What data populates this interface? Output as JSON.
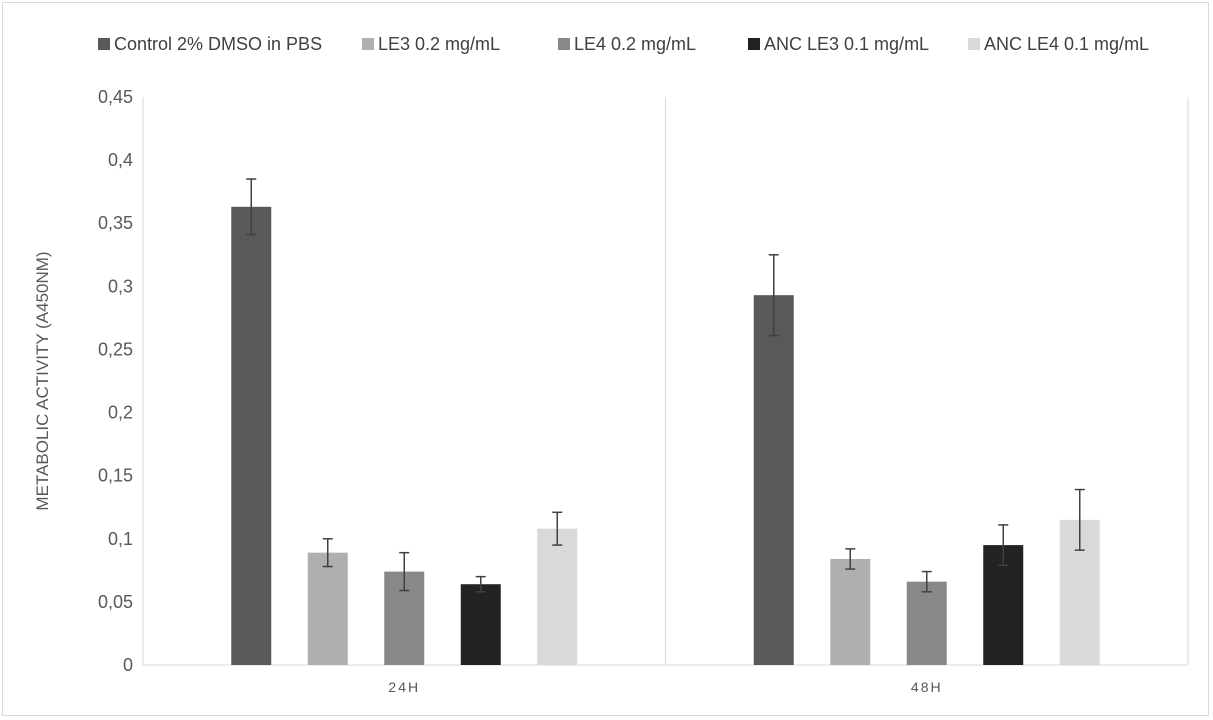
{
  "chart_data": {
    "type": "bar",
    "title": "",
    "xlabel": "",
    "ylabel": "METABOLIC ACTIVITY (A450NM)",
    "categories": [
      "24H",
      "48H"
    ],
    "ylim": [
      0,
      0.45
    ],
    "y_ticks": [
      0,
      0.05,
      0.1,
      0.15,
      0.2,
      0.25,
      0.3,
      0.35,
      0.4,
      0.45
    ],
    "y_tick_labels": [
      "0",
      "0,05",
      "0,1",
      "0,15",
      "0,2",
      "0,25",
      "0,3",
      "0,35",
      "0,4",
      "0,45"
    ],
    "legend_position": "top",
    "grid": false,
    "series": [
      {
        "name": "Control 2% DMSO in PBS",
        "color": "#595959",
        "values": [
          0.363,
          0.293
        ],
        "errors": [
          0.022,
          0.032
        ]
      },
      {
        "name": "LE3 0.2 mg/mL",
        "color": "#afafaf",
        "values": [
          0.089,
          0.084
        ],
        "errors": [
          0.011,
          0.008
        ]
      },
      {
        "name": "LE4 0.2 mg/mL",
        "color": "#888888",
        "values": [
          0.074,
          0.066
        ],
        "errors": [
          0.015,
          0.008
        ]
      },
      {
        "name": "ANC LE3 0.1 mg/mL",
        "color": "#222222",
        "values": [
          0.064,
          0.095
        ],
        "errors": [
          0.006,
          0.016
        ]
      },
      {
        "name": "ANC LE4 0.1 mg/mL",
        "color": "#d9d9d9",
        "values": [
          0.108,
          0.115
        ],
        "errors": [
          0.013,
          0.024
        ]
      }
    ]
  }
}
